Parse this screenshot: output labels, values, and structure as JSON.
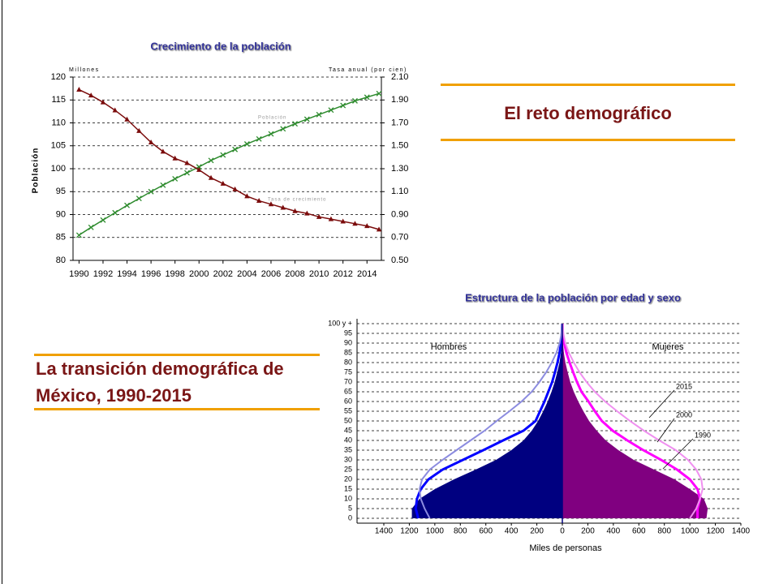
{
  "slide": {
    "title": "El reto demográfico",
    "subtitle": "La transición demográfica de México, 1990-2015"
  },
  "chart_data": [
    {
      "type": "line",
      "title": "Crecimiento de la población",
      "ylabel": "Población",
      "ylabel_unit": "Millones",
      "y2label": "Tasa anual (por cien)",
      "x": [
        1990,
        1991,
        1992,
        1993,
        1994,
        1995,
        1996,
        1997,
        1998,
        1999,
        2000,
        2001,
        2002,
        2003,
        2004,
        2005,
        2006,
        2007,
        2008,
        2009,
        2010,
        2011,
        2012,
        2013,
        2014,
        2015
      ],
      "xlim": [
        1989.5,
        2015.2
      ],
      "xticks": [
        1990,
        1992,
        1994,
        1996,
        1998,
        2000,
        2002,
        2004,
        2006,
        2008,
        2010,
        2012,
        2014
      ],
      "ylim": [
        80,
        120
      ],
      "yticks": [
        80,
        85,
        90,
        95,
        100,
        105,
        110,
        115,
        120
      ],
      "y2lim": [
        0.5,
        2.1
      ],
      "y2ticks": [
        {
          "value": 0.5,
          "label": "0.50"
        },
        {
          "value": 0.7,
          "label": "0.70"
        },
        {
          "value": 0.9,
          "label": "0.90"
        },
        {
          "value": 1.1,
          "label": "1.10"
        },
        {
          "value": 1.3,
          "label": "1.30"
        },
        {
          "value": 1.5,
          "label": "1.50"
        },
        {
          "value": 1.7,
          "label": "1.70"
        },
        {
          "value": 1.9,
          "label": "1.90"
        },
        {
          "value": 2.1,
          "label": "2.10"
        }
      ],
      "grid": true,
      "series": [
        {
          "name": "Población",
          "color": "#2e8b2e",
          "marker": "x",
          "values": [
            85.5,
            87.2,
            88.8,
            90.4,
            92.0,
            93.5,
            95.0,
            96.4,
            97.8,
            99.1,
            100.4,
            101.8,
            103.0,
            104.2,
            105.4,
            106.5,
            107.6,
            108.7,
            109.8,
            110.8,
            111.8,
            112.8,
            113.8,
            114.8,
            115.6,
            116.4
          ]
        },
        {
          "name": "Tasa de crecimiento",
          "color": "#7b0c0c",
          "marker": "triangle",
          "axis": "y2",
          "values": [
            1.99,
            1.94,
            1.88,
            1.81,
            1.73,
            1.63,
            1.53,
            1.45,
            1.39,
            1.35,
            1.29,
            1.22,
            1.17,
            1.12,
            1.06,
            1.02,
            0.99,
            0.96,
            0.93,
            0.91,
            0.88,
            0.86,
            0.84,
            0.82,
            0.8,
            0.77
          ]
        }
      ]
    },
    {
      "type": "pyramid",
      "title": "Estructura de la población por edad y sexo",
      "xlabel": "Miles de personas",
      "groups": [
        "Hombres",
        "Mujeres"
      ],
      "y": [
        0,
        5,
        10,
        15,
        20,
        25,
        30,
        35,
        40,
        45,
        50,
        55,
        60,
        65,
        70,
        75,
        80,
        85,
        90,
        95,
        100
      ],
      "ylim": [
        -2.5,
        102.5
      ],
      "yticks": [
        0,
        5,
        10,
        15,
        20,
        25,
        30,
        35,
        40,
        45,
        50,
        55,
        60,
        65,
        70,
        75,
        80,
        85,
        90,
        95,
        {
          "value": 100,
          "label": "100 y +"
        }
      ],
      "xlim": [
        -1400,
        1400
      ],
      "xticks": [
        {
          "value": -1400,
          "label": "1400"
        },
        {
          "value": -1200,
          "label": "1200"
        },
        {
          "value": -1000,
          "label": "1000"
        },
        {
          "value": -800,
          "label": "800"
        },
        {
          "value": -600,
          "label": "600"
        },
        {
          "value": -400,
          "label": "400"
        },
        {
          "value": -200,
          "label": "200"
        },
        0,
        200,
        400,
        600,
        800,
        1000,
        1200,
        1400
      ],
      "grid": true,
      "series": [
        {
          "name": "1990",
          "fill": true,
          "colors": [
            "#000080",
            "#800080"
          ],
          "values": [
            [
              -1180,
              -1180,
              -1120,
              -1000,
              -850,
              -680,
              -520,
              -400,
              -305,
              -240,
              -190,
              -150,
              -115,
              -85,
              -60,
              -40,
              -22,
              -11,
              -5,
              -2,
              -1
            ],
            [
              1130,
              1140,
              1110,
              1000,
              880,
              720,
              560,
              440,
              340,
              270,
              210,
              165,
              125,
              90,
              62,
              42,
              24,
              12,
              5,
              2,
              1
            ]
          ]
        },
        {
          "name": "2000",
          "fill": false,
          "colors": [
            "#0000ff",
            "#ff00ff"
          ],
          "values": [
            [
              -1130,
              -1150,
              -1140,
              -1110,
              -1050,
              -940,
              -780,
              -620,
              -465,
              -305,
              -210,
              -175,
              -140,
              -110,
              -80,
              -58,
              -38,
              -22,
              -10,
              -4,
              -1
            ],
            [
              1060,
              1060,
              1080,
              1060,
              1000,
              900,
              775,
              635,
              510,
              395,
              310,
              255,
              205,
              150,
              115,
              85,
              57,
              32,
              14,
              4,
              1
            ]
          ]
        },
        {
          "name": "2015",
          "fill": false,
          "colors": [
            "#8c8ce0",
            "#f090f0"
          ],
          "values": [
            [
              -1040,
              -1080,
              -1110,
              -1120,
              -1100,
              -1040,
              -940,
              -830,
              -720,
              -610,
              -515,
              -415,
              -320,
              -240,
              -180,
              -127,
              -83,
              -47,
              -21,
              -7,
              -2
            ],
            [
              1000,
              1050,
              1080,
              1100,
              1090,
              1050,
              985,
              890,
              760,
              640,
              530,
              430,
              335,
              255,
              190,
              135,
              90,
              52,
              24,
              8,
              2
            ]
          ]
        }
      ]
    }
  ]
}
